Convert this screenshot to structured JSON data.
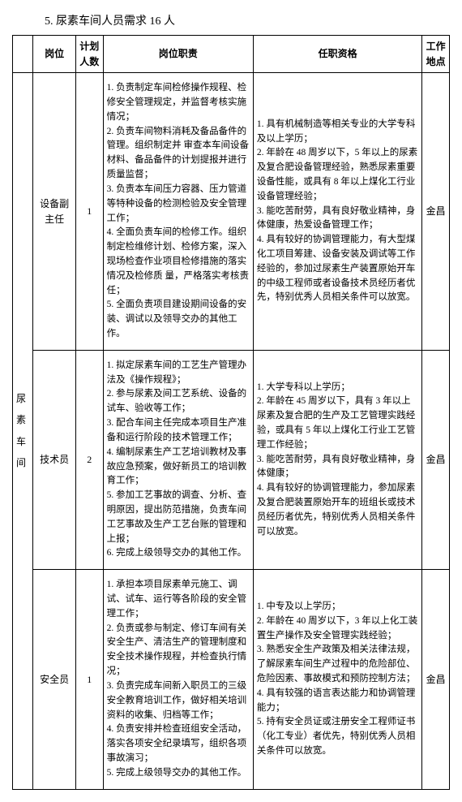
{
  "heading": "5. 尿素车间人员需求 16 人",
  "headers": {
    "dept": "",
    "pos": "岗位",
    "num": "计划人数",
    "duty": "岗位职责",
    "qual": "任职资格",
    "loc": "工作地点"
  },
  "dept": "尿素车间",
  "rows": [
    {
      "pos": "设备副主任",
      "num": "1",
      "duty": [
        "1. 负责制定车间检修操作规程、检修安全管理规定，并监督考核实施情况；",
        "2. 负责车间物料消耗及备品备件的管理。组织制定并 审查本车间设备材料、备品备件的计划提报并进行质量监督；",
        "3. 负责本车间压力容器、压力管道等特种设备的检测检验及安全管理工作；",
        "4. 全面负责车间的检修工作。组织制定检维修计划、检修方案，深入现场检查作业项目检修措施的落实情况及检修质 量，严格落实考核责任；",
        "5. 全面负责项目建设期间设备的安装、调试以及领导交办的其他工作。"
      ],
      "qual": [
        "1. 具有机械制造等相关专业的大学专科及以上学历；",
        "2. 年龄在 48 周岁以下，5 年以上的尿素及复合肥设备管理经验，熟悉尿素重要设备性能，或具有 8 年以上煤化工行业设备管理经验；",
        "3. 能吃苦耐劳，具有良好敬业精神，身体健康，热爱设备管理工作；",
        "4. 具有较好的协调管理能力，有大型煤化工项目筹建、设备安装及调试等工作经验的，参加过尿素生产装置原始开车的中级工程师或者设备技术员经历者优先，特别优秀人员相关条件可以放宽。"
      ],
      "loc": "金昌"
    },
    {
      "pos": "技术员",
      "num": "2",
      "duty": [
        "1. 拟定尿素车间的工艺生产管理办法及《操作规程》；",
        "2. 参与尿素及间工艺系统、设备的试车、验收等工作；",
        "3. 配合车间主任完成本项目生产准备和运行阶段的技术管理工作；",
        "4. 编制尿素生产工艺培训教材及事故应急预案，做好新员工的培训教育工作；",
        "5. 参加工艺事故的调查、分析、查明原因，提出防范措施，负责车间工艺事故及生产工艺台账的管理和上报；",
        "6. 完成上级领导交办的其他工作。"
      ],
      "qual": [
        "1. 大学专科以上学历；",
        "2. 年龄在 45 周岁以下，具有 3 年以上尿素及复合肥的生产及工艺管理实践经验，或具有 5 年以上煤化工行业工艺管理工作经验；",
        "3. 能吃苦耐劳，具有良好敬业精神，身体健康；",
        "4. 具有较好的协调管理能力，参加尿素及复合肥装置原始开车的班组长或技术员经历者优先，特别优秀人员相关条件可以放宽。"
      ],
      "loc": "金昌"
    },
    {
      "pos": "安全员",
      "num": "1",
      "duty": [
        "1. 承担本项目尿素单元施工、调试、试车、运行等各阶段的安全管理工作；",
        "2. 负责或参与制定、修订车间有关安全生产、清洁生产的管理制度和安全技术操作规程，并检查执行情况；",
        "3. 负责完成车间新入职员工的三级安全教育培训工作，做好相关培训资料的收集、归档等工作；",
        "4. 负责安排并检查班组安全活动，落实各项安全纪录填写，组织各项事故演习；",
        "5. 完成上级领导交办的其他工作。"
      ],
      "qual": [
        "1. 中专及以上学历；",
        "2. 年龄在 40 周岁以下，3 年以上化工装置生产操作及安全管理实践经验；",
        "3. 熟悉安全生产政策及相关法律法规，了解尿素车间生产过程中的危险部位、危险因素、事故模式和预防控制方法；",
        "4. 具有较强的语言表达能力和协调管理能力；",
        "5. 持有安全员证或注册安全工程师证书（化工专业）者优先，特别优秀人员相关条件可以放宽。"
      ],
      "loc": "金昌"
    }
  ]
}
